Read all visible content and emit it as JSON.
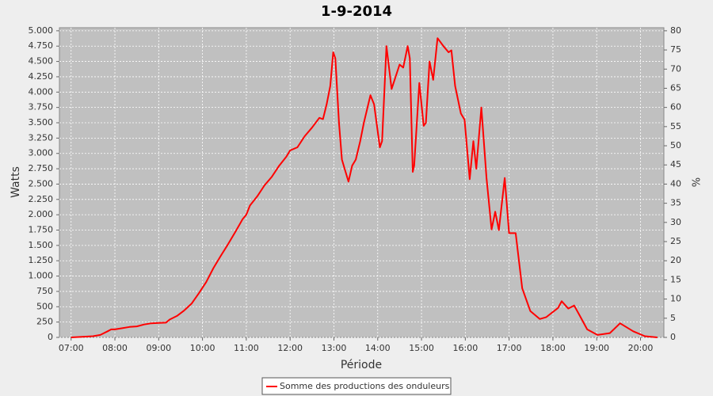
{
  "chart_data": {
    "type": "line",
    "title": "1-9-2014",
    "x_label": "Période",
    "y_label": "Watts",
    "y2_label": "%",
    "x": [
      "07:00",
      "07:15",
      "07:30",
      "07:40",
      "07:50",
      "07:55",
      "08:00",
      "08:10",
      "08:20",
      "08:30",
      "08:40",
      "08:50",
      "09:00",
      "09:10",
      "09:15",
      "09:25",
      "09:35",
      "09:45",
      "09:55",
      "10:05",
      "10:15",
      "10:25",
      "10:35",
      "10:45",
      "10:55",
      "11:00",
      "11:05",
      "11:15",
      "11:25",
      "11:35",
      "11:45",
      "11:55",
      "12:00",
      "12:10",
      "12:20",
      "12:30",
      "12:40",
      "12:45",
      "12:50",
      "12:55",
      "12:59",
      "13:02",
      "13:07",
      "13:11",
      "13:16",
      "13:20",
      "13:25",
      "13:30",
      "13:36",
      "13:41",
      "13:50",
      "13:55",
      "14:03",
      "14:06",
      "14:12",
      "14:19",
      "14:30",
      "14:35",
      "14:41",
      "14:44",
      "14:48",
      "14:50",
      "14:57",
      "15:03",
      "15:06",
      "15:11",
      "15:16",
      "15:22",
      "15:30",
      "15:37",
      "15:41",
      "15:46",
      "15:54",
      "15:59",
      "16:06",
      "16:11",
      "16:15",
      "16:22",
      "16:29",
      "16:36",
      "16:41",
      "16:46",
      "16:54",
      "17:00",
      "17:09",
      "17:18",
      "17:29",
      "17:42",
      "17:51",
      "18:07",
      "18:12",
      "18:21",
      "18:29",
      "18:37",
      "18:47",
      "19:01",
      "19:18",
      "19:32",
      "19:50",
      "20:06",
      "20:23"
    ],
    "series": [
      {
        "name": "Somme des productions des onduleurs",
        "color": "#ff0000",
        "values": [
          0,
          10,
          20,
          40,
          100,
          130,
          130,
          150,
          170,
          180,
          210,
          230,
          235,
          240,
          290,
          350,
          440,
          550,
          720,
          900,
          1130,
          1330,
          1520,
          1720,
          1930,
          2000,
          2150,
          2300,
          2480,
          2620,
          2800,
          2950,
          3050,
          3100,
          3280,
          3420,
          3580,
          3560,
          3800,
          4100,
          4650,
          4550,
          3500,
          2900,
          2700,
          2540,
          2800,
          2900,
          3200,
          3500,
          3950,
          3800,
          3100,
          3200,
          4750,
          4050,
          4450,
          4400,
          4750,
          4550,
          2700,
          2800,
          4150,
          3450,
          3500,
          4500,
          4200,
          4880,
          4750,
          4650,
          4680,
          4100,
          3650,
          3550,
          2580,
          3200,
          2750,
          3750,
          2600,
          1760,
          2050,
          1750,
          2600,
          1700,
          1700,
          800,
          430,
          300,
          330,
          480,
          590,
          470,
          520,
          350,
          130,
          40,
          70,
          230,
          100,
          20,
          0
        ]
      }
    ],
    "xlim": [
      "06:44",
      "20:32"
    ],
    "xticks": [
      "07:00",
      "08:00",
      "09:00",
      "10:00",
      "11:00",
      "12:00",
      "13:00",
      "14:00",
      "15:00",
      "16:00",
      "17:00",
      "18:00",
      "19:00",
      "20:00"
    ],
    "ylim": [
      0,
      5050
    ],
    "yticks": [
      0,
      250,
      500,
      750,
      {
        "value": 1000,
        "label": "1.000"
      },
      {
        "value": 1250,
        "label": "1.250"
      },
      {
        "value": 1500,
        "label": "1.500"
      },
      {
        "value": 1750,
        "label": "1.750"
      },
      {
        "value": 2000,
        "label": "2.000"
      },
      {
        "value": 2250,
        "label": "2.250"
      },
      {
        "value": 2500,
        "label": "2.500"
      },
      {
        "value": 2750,
        "label": "2.750"
      },
      {
        "value": 3000,
        "label": "3.000"
      },
      {
        "value": 3250,
        "label": "3.250"
      },
      {
        "value": 3500,
        "label": "3.500"
      },
      {
        "value": 3750,
        "label": "3.750"
      },
      {
        "value": 4000,
        "label": "4.000"
      },
      {
        "value": 4250,
        "label": "4.250"
      },
      {
        "value": 4500,
        "label": "4.500"
      },
      {
        "value": 4750,
        "label": "4.750"
      },
      {
        "value": 5000,
        "label": "5.000"
      }
    ],
    "y2lim": [
      0,
      80.8
    ],
    "y2ticks": [
      0,
      5,
      10,
      15,
      20,
      25,
      30,
      35,
      40,
      45,
      50,
      55,
      60,
      65,
      70,
      75,
      80
    ],
    "grid": true
  }
}
